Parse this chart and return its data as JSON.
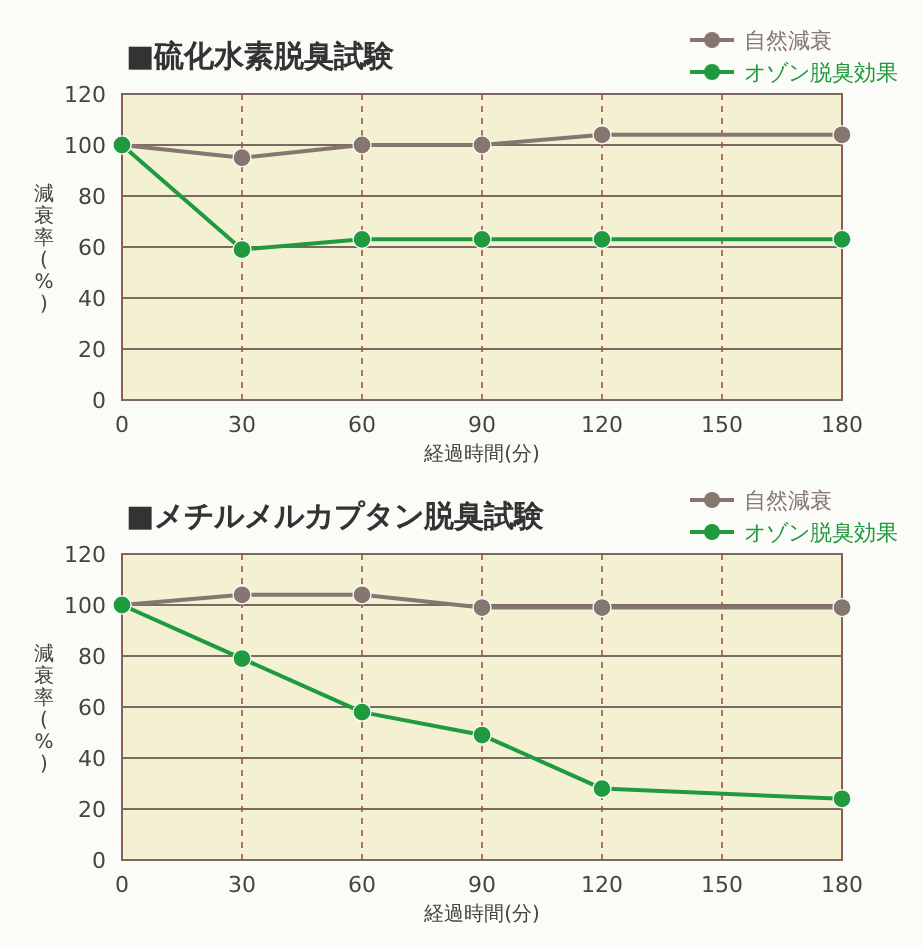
{
  "chart_data": [
    {
      "type": "line",
      "title": "■硫化水素脱臭試験",
      "xlabel": "経過時間(分)",
      "ylabel": "減衰率(%)",
      "x": [
        0,
        30,
        60,
        90,
        120,
        180
      ],
      "xlim": [
        0,
        180
      ],
      "xticks": [
        0,
        30,
        60,
        90,
        120,
        150,
        180
      ],
      "ylim": [
        0,
        120
      ],
      "yticks": [
        0,
        20,
        40,
        60,
        80,
        100,
        120
      ],
      "grid": true,
      "legend": "top right",
      "marker": "circle",
      "series": [
        {
          "name": "自然減衰",
          "color": "#857670",
          "values": [
            100,
            95,
            100,
            100,
            104,
            104
          ]
        },
        {
          "name": "オゾン脱臭効果",
          "color": "#1f9a3e",
          "values": [
            100,
            59,
            63,
            63,
            63,
            63
          ]
        }
      ]
    },
    {
      "type": "line",
      "title": "■メチルメルカプタン脱臭試験",
      "xlabel": "経過時間(分)",
      "ylabel": "減衰率(%)",
      "x": [
        0,
        30,
        60,
        90,
        120,
        180
      ],
      "xlim": [
        0,
        180
      ],
      "xticks": [
        0,
        30,
        60,
        90,
        120,
        150,
        180
      ],
      "ylim": [
        0,
        120
      ],
      "yticks": [
        0,
        20,
        40,
        60,
        80,
        100,
        120
      ],
      "grid": true,
      "legend": "top right",
      "marker": "circle",
      "series": [
        {
          "name": "自然減衰",
          "color": "#857670",
          "values": [
            100,
            104,
            104,
            99,
            99,
            99
          ]
        },
        {
          "name": "オゾン脱臭効果",
          "color": "#1f9a3e",
          "values": [
            100,
            79,
            58,
            49,
            28,
            24
          ]
        }
      ]
    }
  ]
}
